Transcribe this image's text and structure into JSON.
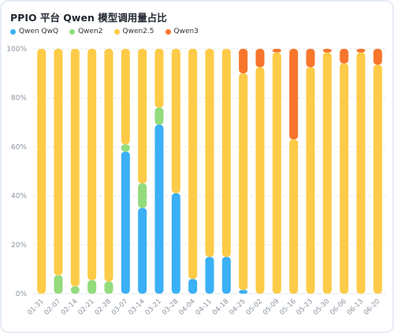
{
  "chart_data": {
    "type": "bar",
    "stacked": true,
    "title": "PPIO 平台 Qwen 模型调用量占比",
    "categories": [
      "01-31",
      "02-07",
      "02-14",
      "02-21",
      "02-28",
      "03-07",
      "03-14",
      "03-21",
      "03-28",
      "04-04",
      "04-11",
      "04-18",
      "04-25",
      "05-02",
      "05-09",
      "05-16",
      "05-23",
      "05-30",
      "06-06",
      "06-13",
      "06-20"
    ],
    "series": [
      {
        "name": "Qwen QwQ",
        "color": "#3ab0f5",
        "values": [
          0,
          0,
          0,
          0,
          0,
          58,
          35,
          69,
          41,
          6,
          15,
          15,
          1.5,
          0,
          0,
          0,
          0,
          0,
          0,
          0,
          0
        ]
      },
      {
        "name": "Qwen2",
        "color": "#93db7d",
        "values": [
          0,
          7.5,
          3,
          5.5,
          5,
          3,
          10,
          7,
          0,
          0,
          0,
          0,
          0,
          0,
          0,
          0,
          0,
          0,
          0,
          0,
          0
        ]
      },
      {
        "name": "Qwen2.5",
        "color": "#fdcb47",
        "values": [
          100,
          92.5,
          97,
          94.5,
          95,
          39,
          55,
          24,
          59,
          94,
          85,
          85,
          88.5,
          92.5,
          98.5,
          63,
          92.5,
          98.5,
          94,
          98.5,
          93.5
        ]
      },
      {
        "name": "Qwen3",
        "color": "#f7762c",
        "values": [
          0,
          0,
          0,
          0,
          0,
          0,
          0,
          0,
          0,
          0,
          0,
          0,
          10,
          7.5,
          1.5,
          37,
          7.5,
          1.5,
          6,
          1.5,
          6.5
        ]
      }
    ],
    "yticks": [
      "0%",
      "20%",
      "40%",
      "60%",
      "80%",
      "100%"
    ],
    "ylim": [
      0,
      100
    ],
    "legend_position": "top-left",
    "grid": true
  }
}
